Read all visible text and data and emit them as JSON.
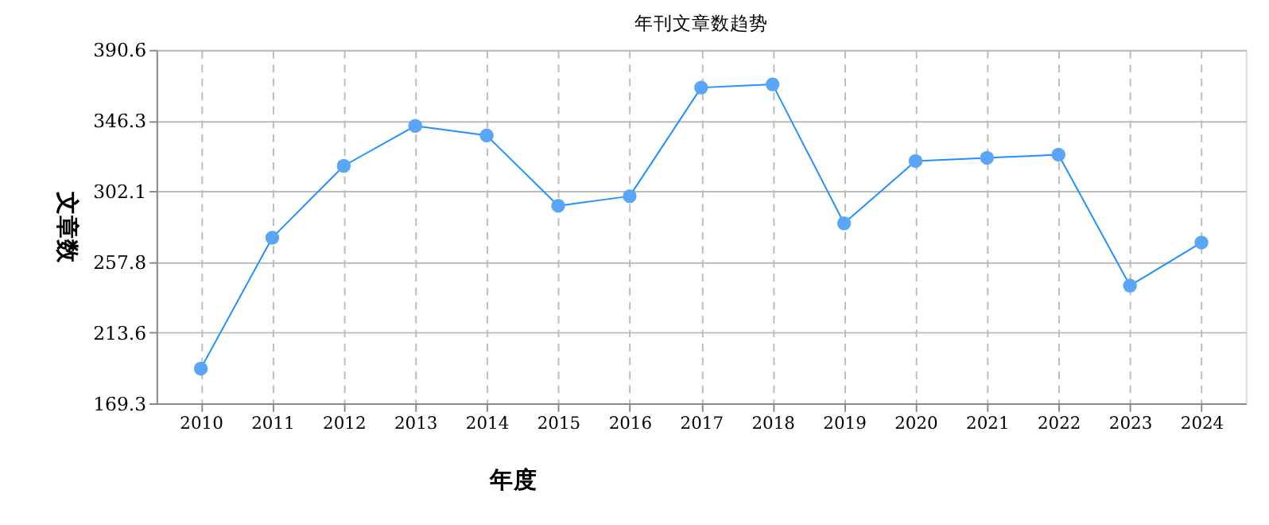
{
  "chart_data": {
    "type": "line",
    "title": "年刊文章数趋势",
    "xlabel": "年度",
    "ylabel": "文章数",
    "categories": [
      "2010",
      "2011",
      "2012",
      "2013",
      "2014",
      "2015",
      "2016",
      "2017",
      "2018",
      "2019",
      "2020",
      "2021",
      "2022",
      "2023",
      "2024"
    ],
    "series": [
      {
        "color": "#1e90ff",
        "values": [
          191,
          273,
          318,
          343,
          337,
          293,
          299,
          367,
          369,
          282,
          321,
          323,
          325,
          243,
          270
        ]
      }
    ],
    "ylim": [
      169.3,
      390.6
    ],
    "yticks": [
      169.3,
      213.6,
      257.8,
      302.1,
      346.3,
      390.6
    ],
    "grid": true,
    "marker": "circle",
    "line_style": "solid"
  }
}
